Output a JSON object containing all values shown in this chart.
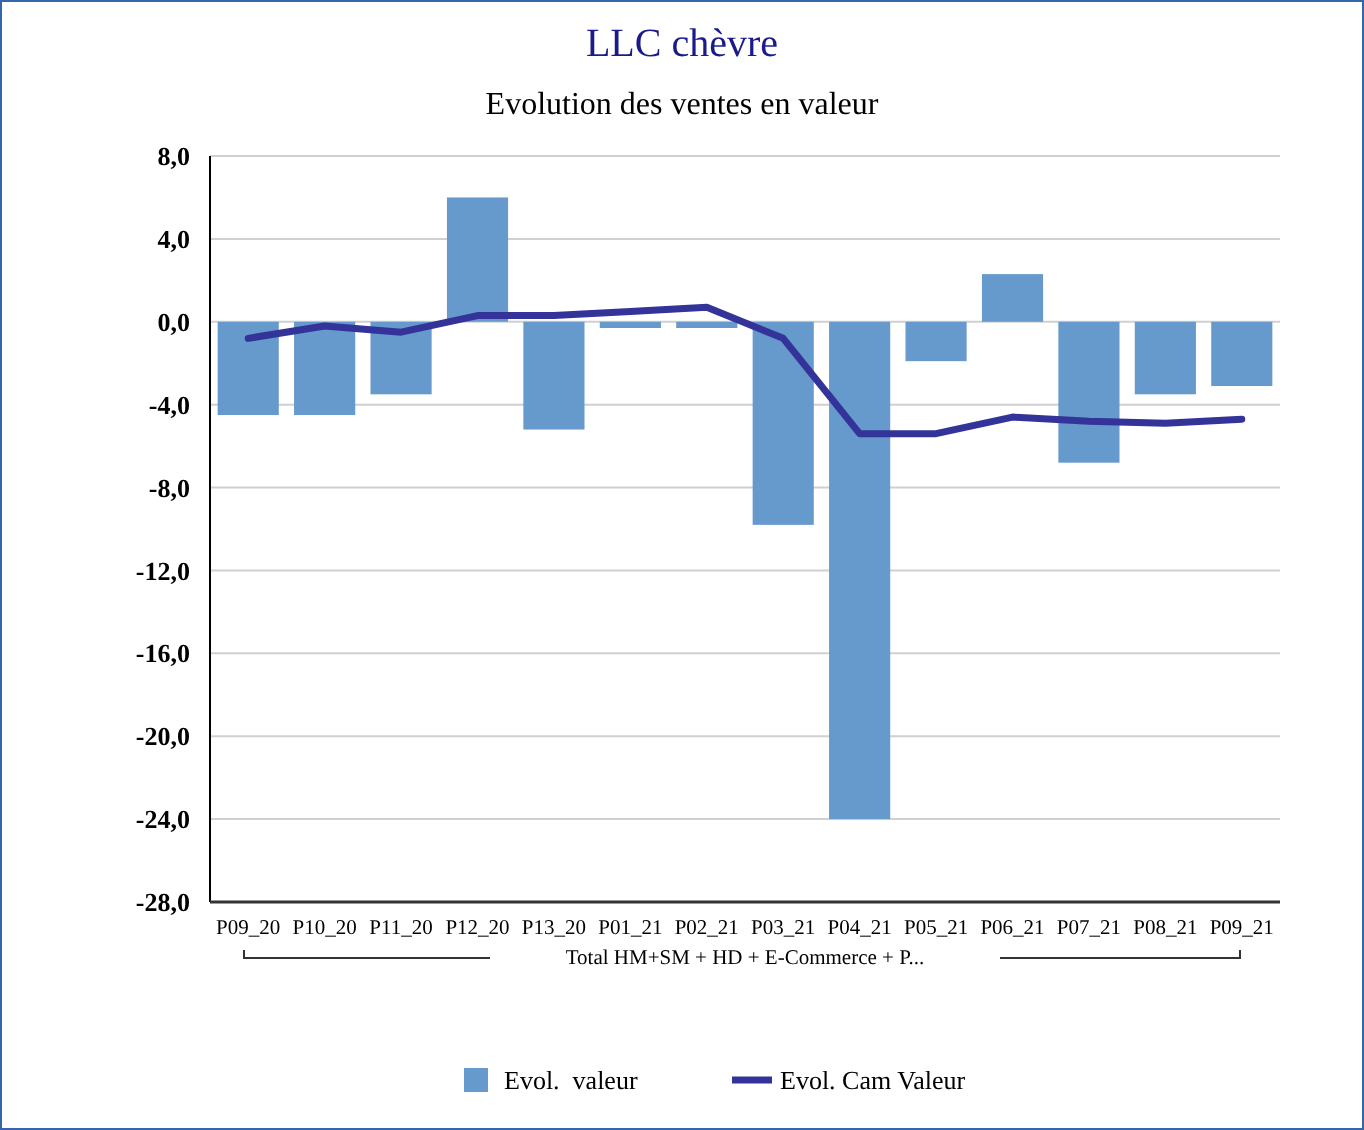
{
  "chart_data": {
    "type": "bar",
    "title": "LLC chèvre",
    "subtitle": "Evolution des ventes en valeur",
    "xlabel": "Total HM+SM + HD + E-Commerce + P...",
    "categories": [
      "P09_20",
      "P10_20",
      "P11_20",
      "P12_20",
      "P13_20",
      "P01_21",
      "P02_21",
      "P03_21",
      "P04_21",
      "P05_21",
      "P06_21",
      "P07_21",
      "P08_21",
      "P09_21"
    ],
    "series": [
      {
        "name": "Evol.  valeur",
        "color": "#6699cc",
        "values": [
          -4.5,
          -4.5,
          -3.5,
          6.0,
          -5.2,
          -0.3,
          -0.3,
          -9.8,
          -24.0,
          -1.9,
          2.3,
          -6.8,
          -3.5,
          -3.1
        ]
      },
      {
        "name": "Evol. Cam Valeur",
        "type": "line",
        "color": "#333399",
        "values": [
          -0.8,
          -0.2,
          -0.5,
          0.3,
          0.3,
          0.5,
          0.7,
          -0.8,
          -5.4,
          -5.4,
          -4.6,
          -4.8,
          -4.9,
          -4.7
        ]
      }
    ],
    "ylim": [
      -28,
      8
    ],
    "yticks": [
      {
        "value": 8,
        "label": "8,0"
      },
      {
        "value": 4,
        "label": "4,0"
      },
      {
        "value": 0,
        "label": "0,0"
      },
      {
        "value": -4,
        "label": "-4,0"
      },
      {
        "value": -8,
        "label": "-8,0"
      },
      {
        "value": -12,
        "label": "-12,0"
      },
      {
        "value": -16,
        "label": "-16,0"
      },
      {
        "value": -20,
        "label": "-20,0"
      },
      {
        "value": -24,
        "label": "-24,0"
      },
      {
        "value": -28,
        "label": "-28,0"
      }
    ],
    "grid": "y",
    "legend": "bottom",
    "marker": "none",
    "line_style": "solid"
  }
}
